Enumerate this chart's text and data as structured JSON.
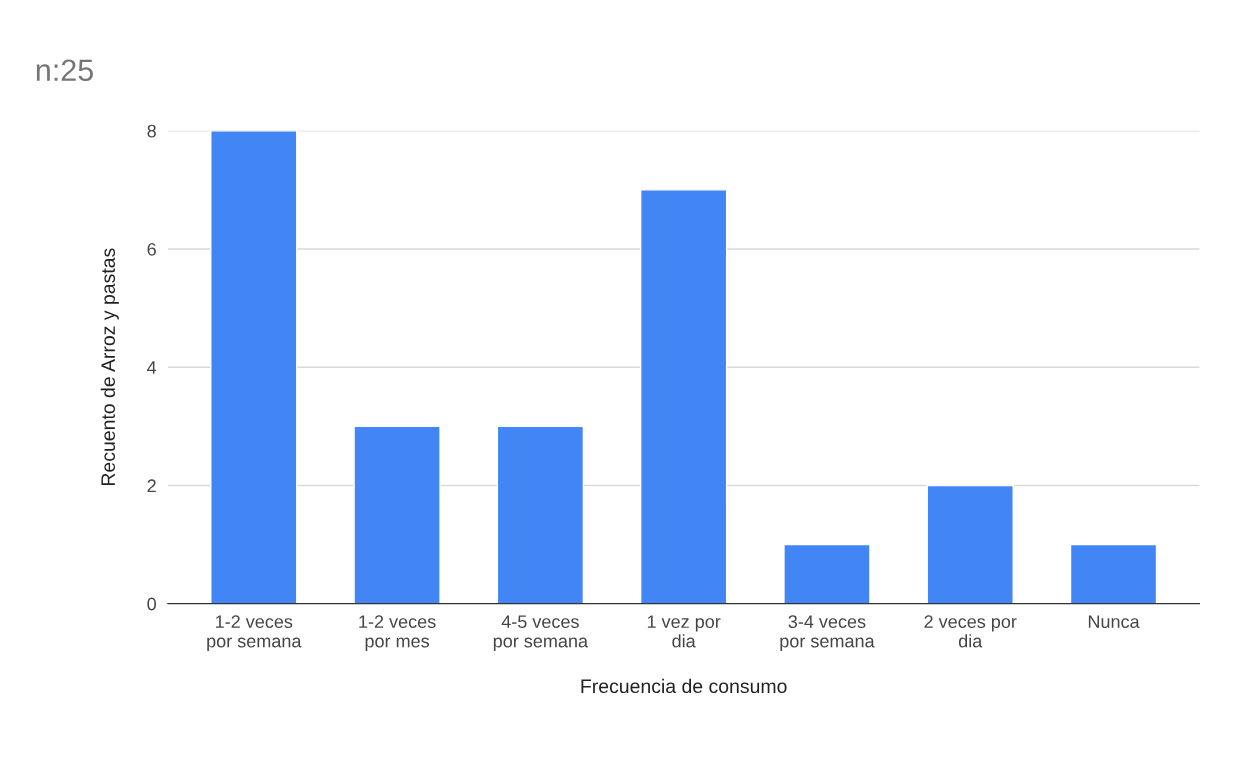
{
  "chart_data": {
    "type": "bar",
    "title": "n:25",
    "xlabel": "Frecuencia de consumo",
    "ylabel": "Recuento de Arroz y pastas",
    "categories": [
      "1-2 veces\npor semana",
      "1-2 veces\npor mes",
      "4-5 veces\npor semana",
      "1 vez por\ndia",
      "3-4 veces\npor semana",
      "2 veces por\ndia",
      "Nunca"
    ],
    "values": [
      8,
      3,
      3,
      7,
      1,
      2,
      1
    ],
    "color": "#4285f4",
    "ylim": [
      0,
      8
    ],
    "yticks": [
      0,
      2,
      4,
      6,
      8
    ],
    "grid": "y"
  }
}
